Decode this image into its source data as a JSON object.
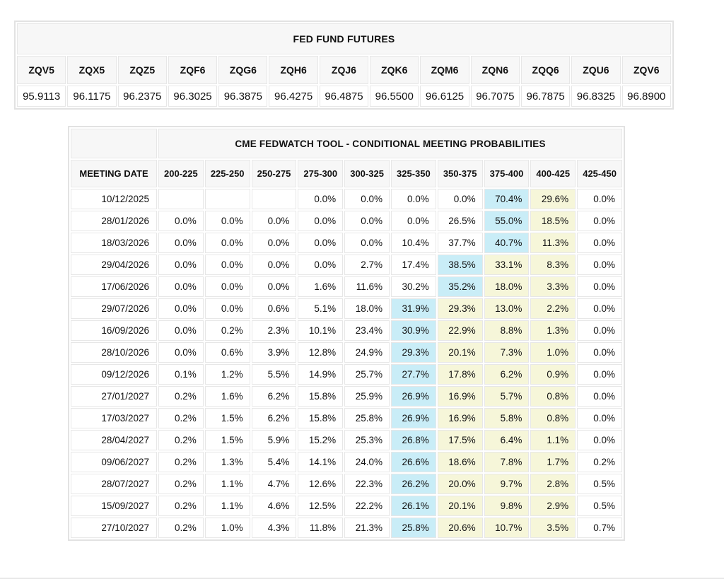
{
  "highlight_colors": {
    "blue": "#c9edf7",
    "yellow": "#f6f6d9"
  },
  "chart_data": [
    {
      "type": "table",
      "title": "FED FUND FUTURES",
      "columns": [
        "ZQV5",
        "ZQX5",
        "ZQZ5",
        "ZQF6",
        "ZQG6",
        "ZQH6",
        "ZQJ6",
        "ZQK6",
        "ZQM6",
        "ZQN6",
        "ZQQ6",
        "ZQU6",
        "ZQV6"
      ],
      "values": [
        "95.9113",
        "96.1175",
        "96.2375",
        "96.3025",
        "96.3875",
        "96.4275",
        "96.4875",
        "96.5500",
        "96.6125",
        "96.7075",
        "96.7875",
        "96.8325",
        "96.8900"
      ]
    },
    {
      "type": "table",
      "title": "CME FEDWATCH TOOL - CONDITIONAL MEETING PROBABILITIES",
      "row_header": "MEETING DATE",
      "columns": [
        "200-225",
        "225-250",
        "250-275",
        "275-300",
        "300-325",
        "325-350",
        "350-375",
        "375-400",
        "400-425",
        "425-450"
      ],
      "rows": [
        {
          "date": "10/12/2025",
          "values": [
            "",
            "",
            "",
            "0.0%",
            "0.0%",
            "0.0%",
            "0.0%",
            "70.4%",
            "29.6%",
            "0.0%"
          ],
          "highlight_blue_col": 7,
          "highlight_yellow_cols": [
            8
          ]
        },
        {
          "date": "28/01/2026",
          "values": [
            "0.0%",
            "0.0%",
            "0.0%",
            "0.0%",
            "0.0%",
            "0.0%",
            "26.5%",
            "55.0%",
            "18.5%",
            "0.0%"
          ],
          "highlight_blue_col": 7,
          "highlight_yellow_cols": [
            8
          ]
        },
        {
          "date": "18/03/2026",
          "values": [
            "0.0%",
            "0.0%",
            "0.0%",
            "0.0%",
            "0.0%",
            "10.4%",
            "37.7%",
            "40.7%",
            "11.3%",
            "0.0%"
          ],
          "highlight_blue_col": 7,
          "highlight_yellow_cols": [
            8
          ]
        },
        {
          "date": "29/04/2026",
          "values": [
            "0.0%",
            "0.0%",
            "0.0%",
            "0.0%",
            "2.7%",
            "17.4%",
            "38.5%",
            "33.1%",
            "8.3%",
            "0.0%"
          ],
          "highlight_blue_col": 6,
          "highlight_yellow_cols": [
            7,
            8
          ]
        },
        {
          "date": "17/06/2026",
          "values": [
            "0.0%",
            "0.0%",
            "0.0%",
            "1.6%",
            "11.6%",
            "30.2%",
            "35.2%",
            "18.0%",
            "3.3%",
            "0.0%"
          ],
          "highlight_blue_col": 6,
          "highlight_yellow_cols": [
            7,
            8
          ]
        },
        {
          "date": "29/07/2026",
          "values": [
            "0.0%",
            "0.0%",
            "0.6%",
            "5.1%",
            "18.0%",
            "31.9%",
            "29.3%",
            "13.0%",
            "2.2%",
            "0.0%"
          ],
          "highlight_blue_col": 5,
          "highlight_yellow_cols": [
            6,
            7,
            8
          ]
        },
        {
          "date": "16/09/2026",
          "values": [
            "0.0%",
            "0.2%",
            "2.3%",
            "10.1%",
            "23.4%",
            "30.9%",
            "22.9%",
            "8.8%",
            "1.3%",
            "0.0%"
          ],
          "highlight_blue_col": 5,
          "highlight_yellow_cols": [
            6,
            7,
            8
          ]
        },
        {
          "date": "28/10/2026",
          "values": [
            "0.0%",
            "0.6%",
            "3.9%",
            "12.8%",
            "24.9%",
            "29.3%",
            "20.1%",
            "7.3%",
            "1.0%",
            "0.0%"
          ],
          "highlight_blue_col": 5,
          "highlight_yellow_cols": [
            6,
            7,
            8
          ]
        },
        {
          "date": "09/12/2026",
          "values": [
            "0.1%",
            "1.2%",
            "5.5%",
            "14.9%",
            "25.7%",
            "27.7%",
            "17.8%",
            "6.2%",
            "0.9%",
            "0.0%"
          ],
          "highlight_blue_col": 5,
          "highlight_yellow_cols": [
            6,
            7,
            8
          ]
        },
        {
          "date": "27/01/2027",
          "values": [
            "0.2%",
            "1.6%",
            "6.2%",
            "15.8%",
            "25.9%",
            "26.9%",
            "16.9%",
            "5.7%",
            "0.8%",
            "0.0%"
          ],
          "highlight_blue_col": 5,
          "highlight_yellow_cols": [
            6,
            7,
            8
          ]
        },
        {
          "date": "17/03/2027",
          "values": [
            "0.2%",
            "1.5%",
            "6.2%",
            "15.8%",
            "25.8%",
            "26.9%",
            "16.9%",
            "5.8%",
            "0.8%",
            "0.0%"
          ],
          "highlight_blue_col": 5,
          "highlight_yellow_cols": [
            6,
            7,
            8
          ]
        },
        {
          "date": "28/04/2027",
          "values": [
            "0.2%",
            "1.5%",
            "5.9%",
            "15.2%",
            "25.3%",
            "26.8%",
            "17.5%",
            "6.4%",
            "1.1%",
            "0.0%"
          ],
          "highlight_blue_col": 5,
          "highlight_yellow_cols": [
            6,
            7,
            8
          ]
        },
        {
          "date": "09/06/2027",
          "values": [
            "0.2%",
            "1.3%",
            "5.4%",
            "14.1%",
            "24.0%",
            "26.6%",
            "18.6%",
            "7.8%",
            "1.7%",
            "0.2%"
          ],
          "highlight_blue_col": 5,
          "highlight_yellow_cols": [
            6,
            7,
            8
          ]
        },
        {
          "date": "28/07/2027",
          "values": [
            "0.2%",
            "1.1%",
            "4.7%",
            "12.6%",
            "22.3%",
            "26.2%",
            "20.0%",
            "9.7%",
            "2.8%",
            "0.5%"
          ],
          "highlight_blue_col": 5,
          "highlight_yellow_cols": [
            6,
            7,
            8
          ]
        },
        {
          "date": "15/09/2027",
          "values": [
            "0.2%",
            "1.1%",
            "4.6%",
            "12.5%",
            "22.2%",
            "26.1%",
            "20.1%",
            "9.8%",
            "2.9%",
            "0.5%"
          ],
          "highlight_blue_col": 5,
          "highlight_yellow_cols": [
            6,
            7,
            8
          ]
        },
        {
          "date": "27/10/2027",
          "values": [
            "0.2%",
            "1.0%",
            "4.3%",
            "11.8%",
            "21.3%",
            "25.8%",
            "20.6%",
            "10.7%",
            "3.5%",
            "0.7%"
          ],
          "highlight_blue_col": 5,
          "highlight_yellow_cols": [
            6,
            7,
            8
          ]
        }
      ]
    }
  ]
}
